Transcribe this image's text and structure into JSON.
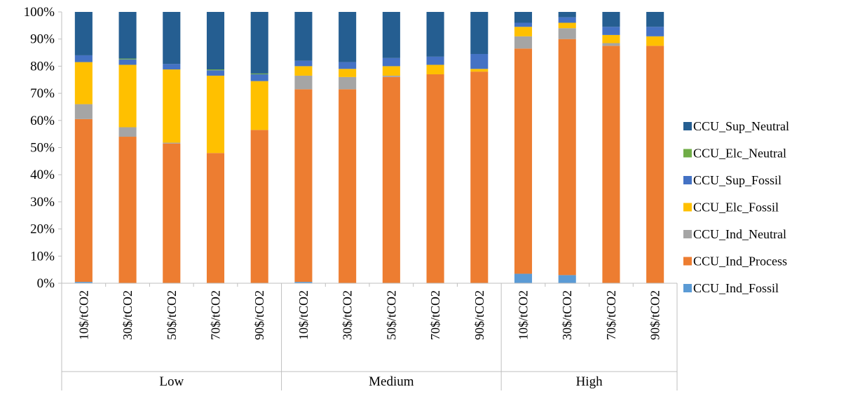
{
  "chart_data": {
    "type": "bar",
    "stacked": true,
    "title": "",
    "xlabel": "",
    "ylabel": "",
    "ylim": [
      0,
      100
    ],
    "y_tick_step": 10,
    "y_tick_format": "percent",
    "grid": false,
    "legend_position": "right",
    "groups": [
      {
        "label": "Low",
        "categories": [
          "10$/tCO2",
          "30$/tCO2",
          "50$/tCO2",
          "70$/tCO2",
          "90$/tCO2"
        ]
      },
      {
        "label": "Medium",
        "categories": [
          "10$/tCO2",
          "30$/tCO2",
          "50$/tCO2",
          "70$/tCO2",
          "90$/tCO2"
        ]
      },
      {
        "label": "High",
        "categories": [
          "10$/tCO2",
          "30$/tCO2",
          "70$/tCO2",
          "90$/tCO2"
        ]
      }
    ],
    "series": [
      {
        "name": "CCU_Ind_Fossil",
        "color": "#5B9BD5",
        "values": [
          0.5,
          0,
          0,
          0,
          0,
          0.5,
          0,
          0,
          0,
          0,
          3.5,
          3.0,
          0,
          0
        ]
      },
      {
        "name": "CCU_Ind_Process",
        "color": "#ED7D31",
        "values": [
          60.0,
          54.0,
          51.5,
          48.0,
          56.5,
          71.0,
          71.5,
          76.0,
          77.0,
          78.0,
          83.0,
          87.0,
          87.5,
          87.5
        ]
      },
      {
        "name": "CCU_Ind_Neutral",
        "color": "#A5A5A5",
        "values": [
          5.5,
          3.5,
          0.3,
          0,
          0,
          5.0,
          4.5,
          0.5,
          0,
          0,
          4.5,
          4.0,
          1.0,
          0
        ]
      },
      {
        "name": "CCU_Elc_Fossil",
        "color": "#FFC000",
        "values": [
          15.5,
          23.0,
          27.0,
          28.5,
          18.0,
          3.5,
          3.0,
          3.5,
          3.5,
          1.0,
          3.5,
          2.0,
          3.0,
          3.5
        ]
      },
      {
        "name": "CCU_Sup_Fossil",
        "color": "#4472C4",
        "values": [
          2.5,
          2.0,
          2.0,
          2.0,
          2.5,
          2.0,
          2.5,
          3.0,
          3.0,
          5.5,
          1.5,
          2.0,
          3.0,
          3.5
        ]
      },
      {
        "name": "CCU_Elc_Neutral",
        "color": "#70AD47",
        "values": [
          0,
          0.3,
          0,
          0.3,
          0.3,
          0,
          0,
          0,
          0,
          0,
          0,
          0,
          0,
          0
        ]
      },
      {
        "name": "CCU_Sup_Neutral",
        "color": "#255E91",
        "values": [
          16.0,
          17.2,
          19.2,
          21.2,
          22.7,
          18.0,
          18.5,
          17.0,
          16.5,
          15.5,
          4.0,
          2.0,
          5.5,
          5.5
        ]
      }
    ]
  }
}
